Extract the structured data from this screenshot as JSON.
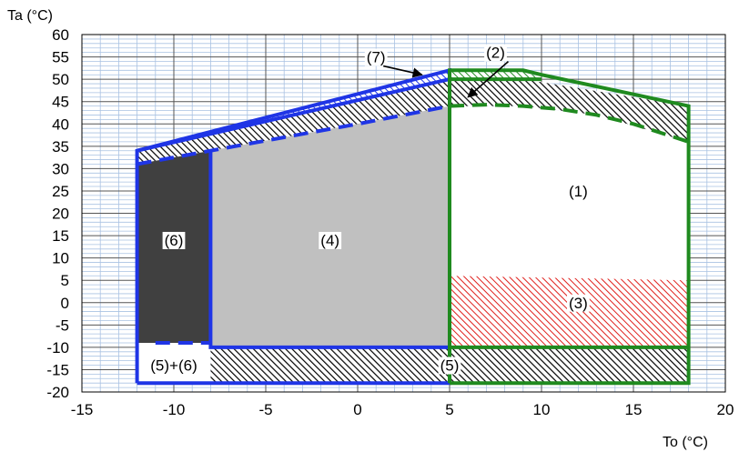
{
  "chart_data": {
    "type": "area",
    "title": "",
    "xlabel": "To (°C)",
    "ylabel": "Ta (°C)",
    "xlim": [
      -15,
      20
    ],
    "ylim": [
      -20,
      60
    ],
    "x_ticks": [
      -15,
      -10,
      -5,
      0,
      5,
      10,
      15,
      20
    ],
    "y_ticks": [
      60,
      55,
      50,
      45,
      40,
      35,
      30,
      25,
      20,
      15,
      10,
      5,
      0,
      -5,
      -10,
      -15,
      -20
    ],
    "x_tick_labels": [
      "-15",
      "-10",
      "-5",
      "0",
      "5",
      "10",
      "15",
      "20"
    ],
    "y_tick_labels": [
      "60",
      "55",
      "50",
      "45",
      "40",
      "35",
      "30",
      "25",
      "20",
      "15",
      "10",
      "5",
      "0",
      "-5",
      "-10",
      "-15",
      "-20"
    ],
    "major_grid": true,
    "minor_grid": true,
    "colors": {
      "blue_envelope": "#1f35e6",
      "green_envelope": "#1f8a1f",
      "grid_major": "#555555",
      "grid_minor": "#a9c2e2",
      "region_4_fill": "#c0c0c0",
      "region_6_fill": "#404040",
      "region_3_hatch": "#e0201c",
      "hatch_dark": "#000000"
    },
    "regions": [
      {
        "label": "(1)",
        "polygon": [
          [
            5,
            -10
          ],
          [
            5,
            44
          ],
          [
            9,
            44
          ],
          [
            13,
            42
          ],
          [
            18,
            36
          ],
          [
            18,
            -10
          ]
        ],
        "style": "white"
      },
      {
        "label": "(2)",
        "polygon": [
          [
            -12,
            31
          ],
          [
            -8,
            34
          ],
          [
            -4,
            37
          ],
          [
            0,
            40
          ],
          [
            5,
            44
          ],
          [
            7,
            44
          ],
          [
            9,
            44
          ],
          [
            13,
            42
          ],
          [
            18,
            36
          ],
          [
            18,
            44
          ],
          [
            9,
            50
          ],
          [
            5,
            50
          ],
          [
            -12,
            34
          ]
        ],
        "style": "black-hatch"
      },
      {
        "label": "(3)",
        "polygon": [
          [
            5,
            -10
          ],
          [
            5,
            6
          ],
          [
            18,
            5
          ],
          [
            18,
            -10
          ]
        ],
        "style": "red-hatch"
      },
      {
        "label": "(4)",
        "polygon": [
          [
            -8,
            -10
          ],
          [
            -8,
            34
          ],
          [
            -4,
            37
          ],
          [
            0,
            40
          ],
          [
            5,
            44
          ],
          [
            5,
            -10
          ]
        ],
        "style": "grey"
      },
      {
        "label": "(5)",
        "polygon": [
          [
            -8,
            -18
          ],
          [
            -8,
            -10
          ],
          [
            18,
            -10
          ],
          [
            18,
            -18
          ]
        ],
        "style": "black-hatch"
      },
      {
        "label": "(5)+(6)",
        "polygon": [
          [
            -12,
            -18
          ],
          [
            -12,
            -9
          ],
          [
            -8,
            -9
          ],
          [
            -8,
            -18
          ]
        ],
        "style": "white"
      },
      {
        "label": "(6)",
        "polygon": [
          [
            -12,
            -9
          ],
          [
            -12,
            31
          ],
          [
            -8,
            34
          ],
          [
            -8,
            -9
          ]
        ],
        "style": "dark"
      },
      {
        "label": "(7)",
        "polygon": [
          [
            -12,
            34
          ],
          [
            5,
            52
          ],
          [
            5,
            50
          ]
        ],
        "style": "blue-hatch"
      },
      {
        "label": "",
        "polygon": [
          [
            5,
            50
          ],
          [
            5,
            52
          ],
          [
            9,
            52
          ],
          [
            10,
            50
          ]
        ],
        "style": "green-hatch"
      }
    ],
    "series": [
      {
        "envelope": "blue",
        "style": "solid",
        "x": [
          -12,
          -12,
          5,
          5,
          -12
        ],
        "y": [
          -18,
          34,
          52,
          -18,
          -18
        ]
      },
      {
        "envelope": "blue",
        "style": "solid",
        "x": [
          -12,
          5
        ],
        "y": [
          34,
          50
        ]
      },
      {
        "envelope": "blue",
        "style": "solid",
        "x": [
          -8,
          -8,
          5
        ],
        "y": [
          34,
          -10,
          -10
        ]
      },
      {
        "envelope": "blue",
        "style": "dashed",
        "x": [
          -12,
          -8,
          -4,
          0,
          5
        ],
        "y": [
          31,
          34,
          37,
          40,
          44
        ]
      },
      {
        "envelope": "blue",
        "style": "dashed",
        "x": [
          -11,
          -8
        ],
        "y": [
          -9,
          -9
        ]
      },
      {
        "envelope": "green",
        "style": "solid",
        "x": [
          5,
          5,
          9,
          10,
          18,
          18,
          5
        ],
        "y": [
          -18,
          52,
          52,
          51,
          44,
          -18,
          -18
        ]
      },
      {
        "envelope": "green",
        "style": "solid",
        "x": [
          5,
          10
        ],
        "y": [
          50,
          50
        ]
      },
      {
        "envelope": "green",
        "style": "solid",
        "x": [
          5,
          18
        ],
        "y": [
          -10,
          -10
        ]
      },
      {
        "envelope": "green",
        "style": "dashed",
        "x": [
          5,
          7,
          9,
          11,
          13,
          15,
          18
        ],
        "y": [
          44,
          44.3,
          44,
          43.3,
          42,
          40,
          36
        ]
      }
    ],
    "annotations": [
      {
        "text": "(1)",
        "x": 12,
        "y": 25
      },
      {
        "text": "(2)",
        "x": 7.5,
        "y": 56,
        "arrow_to": [
          6,
          46
        ]
      },
      {
        "text": "(3)",
        "x": 12,
        "y": 0
      },
      {
        "text": "(4)",
        "x": -1.5,
        "y": 14
      },
      {
        "text": "(5)",
        "x": 5,
        "y": -14
      },
      {
        "text": "(5)+(6)",
        "x": -10,
        "y": -14
      },
      {
        "text": "(6)",
        "x": -10,
        "y": 14
      },
      {
        "text": "(7)",
        "x": 1,
        "y": 55,
        "arrow_to": [
          3.5,
          51
        ]
      }
    ]
  }
}
